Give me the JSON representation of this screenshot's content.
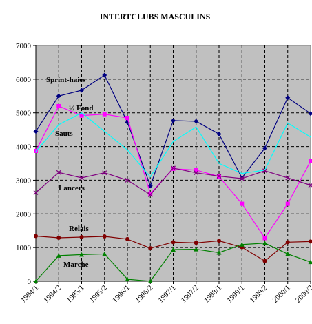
{
  "chart_data": {
    "type": "line",
    "title": "INTERTCLUBS MASCULINS",
    "x": [
      "1994/1",
      "1994/2",
      "1995/1",
      "1995/2",
      "1996/1",
      "1996/2",
      "1997/1",
      "1997/2",
      "1998/1",
      "1999/1",
      "1999/2",
      "2000/1",
      "2000/2"
    ],
    "ylim": [
      0,
      7000
    ],
    "yticks": [
      "0",
      "1000",
      "2000",
      "3000",
      "4000",
      "5000",
      "6000",
      "7000"
    ],
    "grid": true,
    "legend": "inline labels",
    "series": [
      {
        "name": "Sprint-haies",
        "color": "#000080",
        "marker": "diamond",
        "values": [
          4450,
          5500,
          5670,
          6120,
          4720,
          2830,
          4770,
          4750,
          4370,
          3070,
          3950,
          5450,
          4980
        ]
      },
      {
        "name": "½ Fond",
        "color": "#ff00ff",
        "marker": "square",
        "values": [
          3870,
          5200,
          4920,
          4960,
          4850,
          2600,
          3340,
          3300,
          3110,
          2300,
          1280,
          2300,
          3570
        ]
      },
      {
        "name": "Sauts",
        "color": "#00ffff",
        "marker": "none",
        "values": [
          3850,
          4650,
          5000,
          4450,
          3900,
          3100,
          4150,
          4580,
          3500,
          3200,
          3300,
          4700,
          4280
        ]
      },
      {
        "name": "Lancers",
        "color": "#800080",
        "marker": "x",
        "values": [
          2630,
          3230,
          3070,
          3220,
          3000,
          2570,
          3360,
          3220,
          3120,
          3050,
          3280,
          3070,
          2850
        ]
      },
      {
        "name": "Relais",
        "color": "#800000",
        "marker": "circle",
        "values": [
          1340,
          1290,
          1310,
          1330,
          1250,
          980,
          1160,
          1140,
          1200,
          1010,
          600,
          1160,
          1180
        ]
      },
      {
        "name": "Marche",
        "color": "#008000",
        "marker": "triangle",
        "values": [
          0,
          760,
          790,
          810,
          60,
          0,
          940,
          950,
          850,
          1090,
          1130,
          810,
          570
        ]
      }
    ]
  }
}
